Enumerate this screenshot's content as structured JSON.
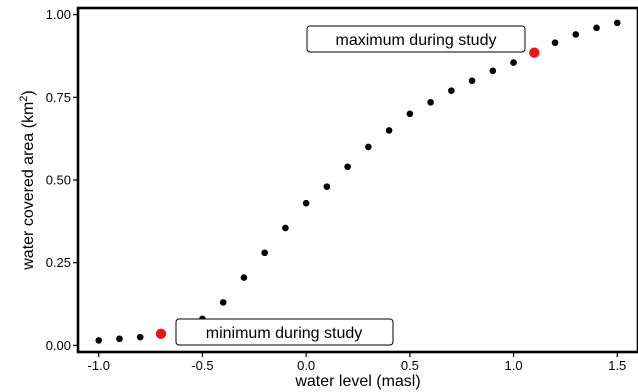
{
  "chart_data": {
    "type": "scatter",
    "title": "",
    "xlabel": "water level (masl)",
    "ylabel_main": "water covered area (km",
    "ylabel_superscript": "2",
    "ylabel_end": ")",
    "xlim": [
      -1.1,
      1.6
    ],
    "ylim": [
      -0.02,
      1.02
    ],
    "x_ticks": [
      -1.0,
      -0.5,
      0.0,
      0.5,
      1.0,
      1.5
    ],
    "x_tick_labels": [
      "-1.0",
      "-0.5",
      "0.0",
      "0.5",
      "1.0",
      "1.5"
    ],
    "y_ticks": [
      0.0,
      0.25,
      0.5,
      0.75,
      1.0
    ],
    "y_tick_labels": [
      "0.00",
      "0.25",
      "0.50",
      "0.75",
      "1.00"
    ],
    "grid": false,
    "legend": "none",
    "series": [
      {
        "color": "#000000",
        "points": [
          [
            -1.0,
            0.015
          ],
          [
            -0.9,
            0.02
          ],
          [
            -0.8,
            0.025
          ],
          [
            -0.6,
            0.055
          ],
          [
            -0.5,
            0.08
          ],
          [
            -0.4,
            0.13
          ],
          [
            -0.3,
            0.205
          ],
          [
            -0.2,
            0.28
          ],
          [
            -0.1,
            0.355
          ],
          [
            0.0,
            0.43
          ],
          [
            0.1,
            0.48
          ],
          [
            0.2,
            0.54
          ],
          [
            0.3,
            0.6
          ],
          [
            0.4,
            0.65
          ],
          [
            0.5,
            0.7
          ],
          [
            0.6,
            0.735
          ],
          [
            0.7,
            0.77
          ],
          [
            0.8,
            0.8
          ],
          [
            0.9,
            0.83
          ],
          [
            1.0,
            0.855
          ],
          [
            1.2,
            0.915
          ],
          [
            1.3,
            0.94
          ],
          [
            1.4,
            0.96
          ],
          [
            1.5,
            0.975
          ]
        ]
      },
      {
        "color": "#e31a1c",
        "points": [
          [
            -0.7,
            0.035
          ],
          [
            1.1,
            0.885
          ]
        ]
      }
    ],
    "annotations": [
      {
        "text": "maximum during study"
      },
      {
        "text": "minimum during study"
      }
    ]
  }
}
